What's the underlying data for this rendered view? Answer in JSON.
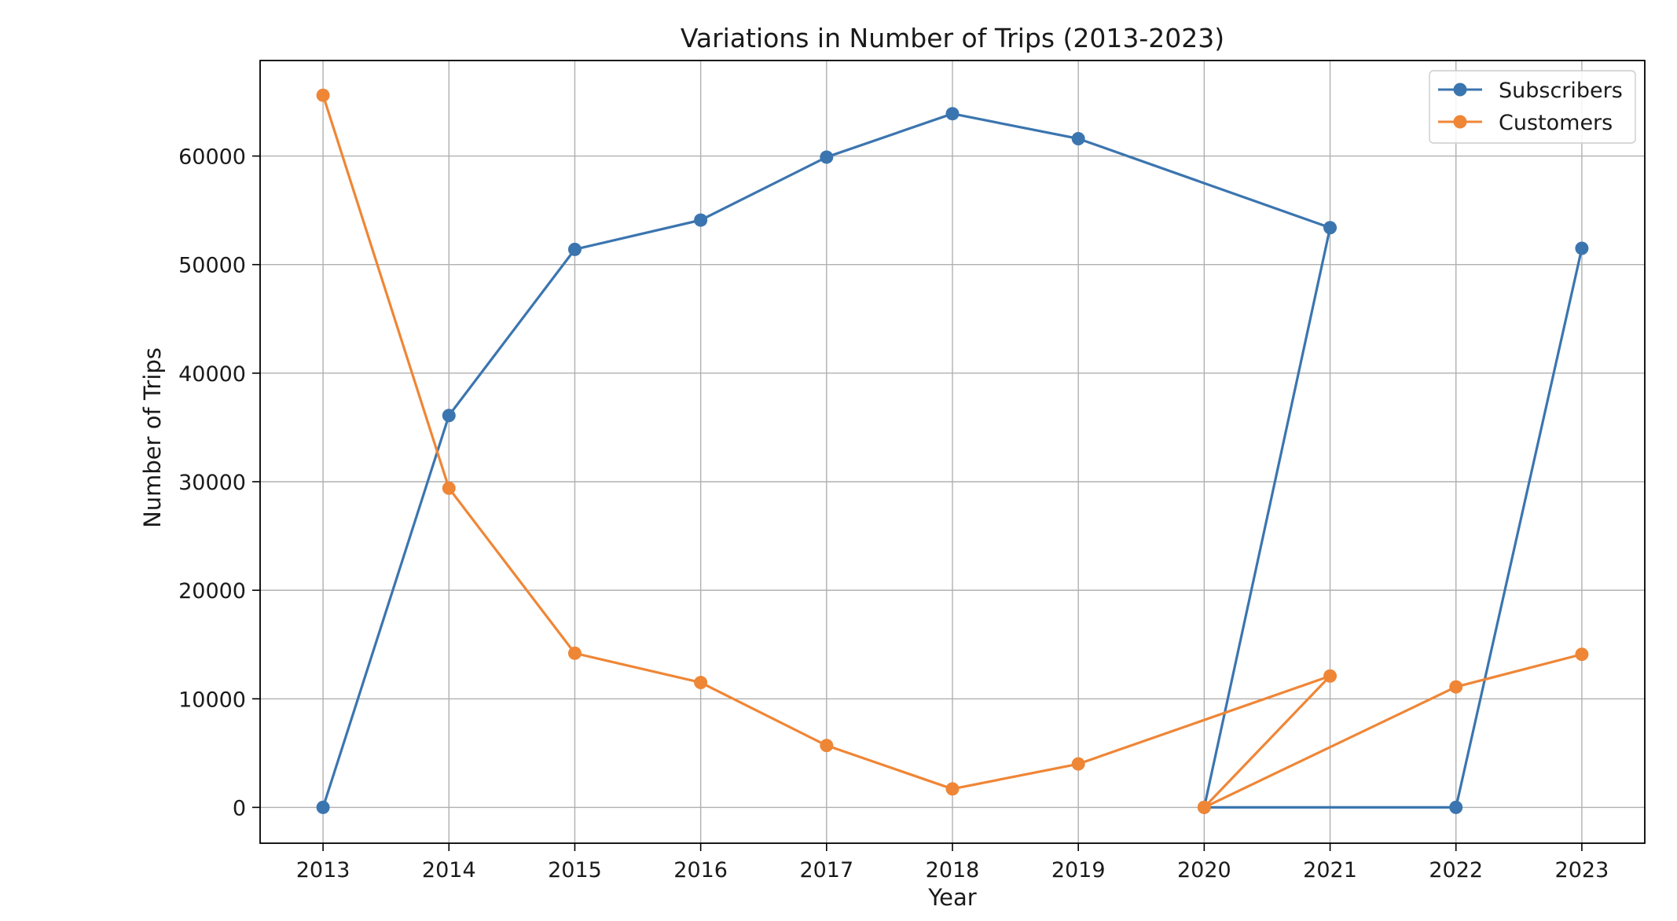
{
  "chart_data": {
    "type": "line",
    "title": "Variations in Number of Trips (2013-2023)",
    "xlabel": "Year",
    "ylabel": "Number of Trips",
    "xlim": [
      2012.5,
      2023.5
    ],
    "ylim": [
      -3300,
      68800
    ],
    "xticks": [
      2013,
      2014,
      2015,
      2016,
      2017,
      2018,
      2019,
      2020,
      2021,
      2022,
      2023
    ],
    "xtick_labels": [
      "2013",
      "2014",
      "2015",
      "2016",
      "2017",
      "2018",
      "2019",
      "2020",
      "2021",
      "2022",
      "2023"
    ],
    "yticks": [
      0,
      10000,
      20000,
      30000,
      40000,
      50000,
      60000
    ],
    "ytick_labels": [
      "0",
      "10000",
      "20000",
      "30000",
      "40000",
      "50000",
      "60000"
    ],
    "grid": true,
    "legend_position": "top-right",
    "series": [
      {
        "name": "Subscribers",
        "color": "#3b75af",
        "marker": "circle",
        "points": [
          [
            2013,
            0
          ],
          [
            2014,
            36100
          ],
          [
            2015,
            51400
          ],
          [
            2016,
            54100
          ],
          [
            2017,
            59900
          ],
          [
            2018,
            63900
          ],
          [
            2019,
            61600
          ],
          [
            2021,
            53400
          ],
          [
            2020,
            0
          ],
          [
            2022,
            0
          ],
          [
            2023,
            51500
          ]
        ]
      },
      {
        "name": "Customers",
        "color": "#ef8636",
        "marker": "circle",
        "points": [
          [
            2013,
            65600
          ],
          [
            2014,
            29400
          ],
          [
            2015,
            14200
          ],
          [
            2016,
            11500
          ],
          [
            2017,
            5700
          ],
          [
            2018,
            1700
          ],
          [
            2019,
            4000
          ],
          [
            2021,
            12100
          ],
          [
            2020,
            0
          ],
          [
            2022,
            11100
          ],
          [
            2023,
            14100
          ]
        ]
      }
    ]
  }
}
